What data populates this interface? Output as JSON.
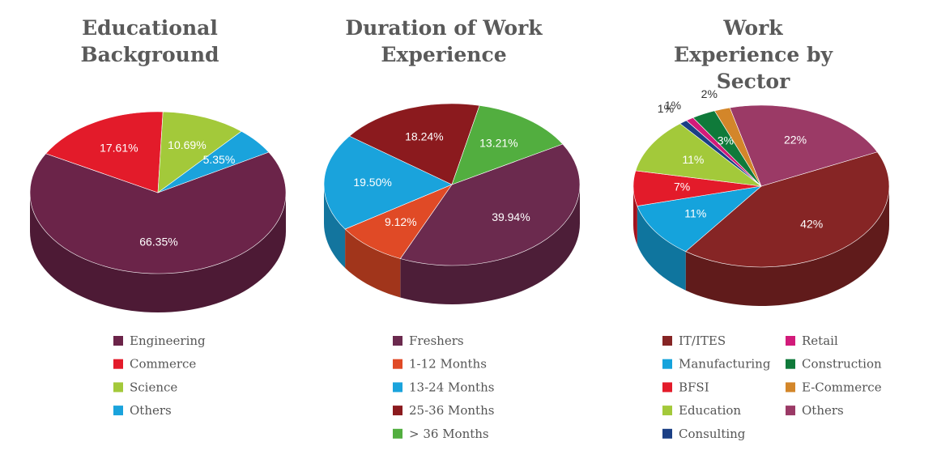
{
  "chart_data": [
    {
      "type": "pie",
      "title": "Educational Background",
      "categories": [
        "Engineering",
        "Commerce",
        "Science",
        "Others"
      ],
      "values": [
        66.35,
        17.61,
        10.69,
        5.35
      ],
      "value_labels": [
        "66.35%",
        "17.61%",
        "10.69%",
        "5.35%"
      ],
      "colors": [
        "#6b2449",
        "#e31b2a",
        "#a3c93a",
        "#1aa3dc"
      ]
    },
    {
      "type": "pie",
      "title": "Duration of Work Experience",
      "categories": [
        "Freshers",
        "1-12 Months",
        "13-24 Months",
        "25-36 Months",
        "> 36 Months"
      ],
      "values": [
        39.94,
        9.12,
        19.5,
        18.24,
        13.21
      ],
      "value_labels": [
        "39.94%",
        "9.12%",
        "19.50%",
        "18.24%",
        "13.21%"
      ],
      "colors": [
        "#6b2a4e",
        "#e04a26",
        "#1aa3dc",
        "#8b1a1e",
        "#52ae3f"
      ]
    },
    {
      "type": "pie",
      "title": "Work Experience by Sector",
      "categories": [
        "IT/ITES",
        "Manufacturing",
        "BFSI",
        "Education",
        "Consulting",
        "Retail",
        "Construction",
        "E-Commerce",
        "Others"
      ],
      "values": [
        42,
        11,
        7,
        11,
        1,
        1,
        3,
        2,
        22
      ],
      "value_labels": [
        "42%",
        "11%",
        "7%",
        "11%",
        "1%",
        "1%",
        "3%",
        "2%",
        "22%"
      ],
      "colors": [
        "#862525",
        "#15a3dc",
        "#e31b2a",
        "#a3c93a",
        "#1b3f85",
        "#d21b7a",
        "#0f7a3a",
        "#d3862a",
        "#9b3a66"
      ]
    }
  ]
}
